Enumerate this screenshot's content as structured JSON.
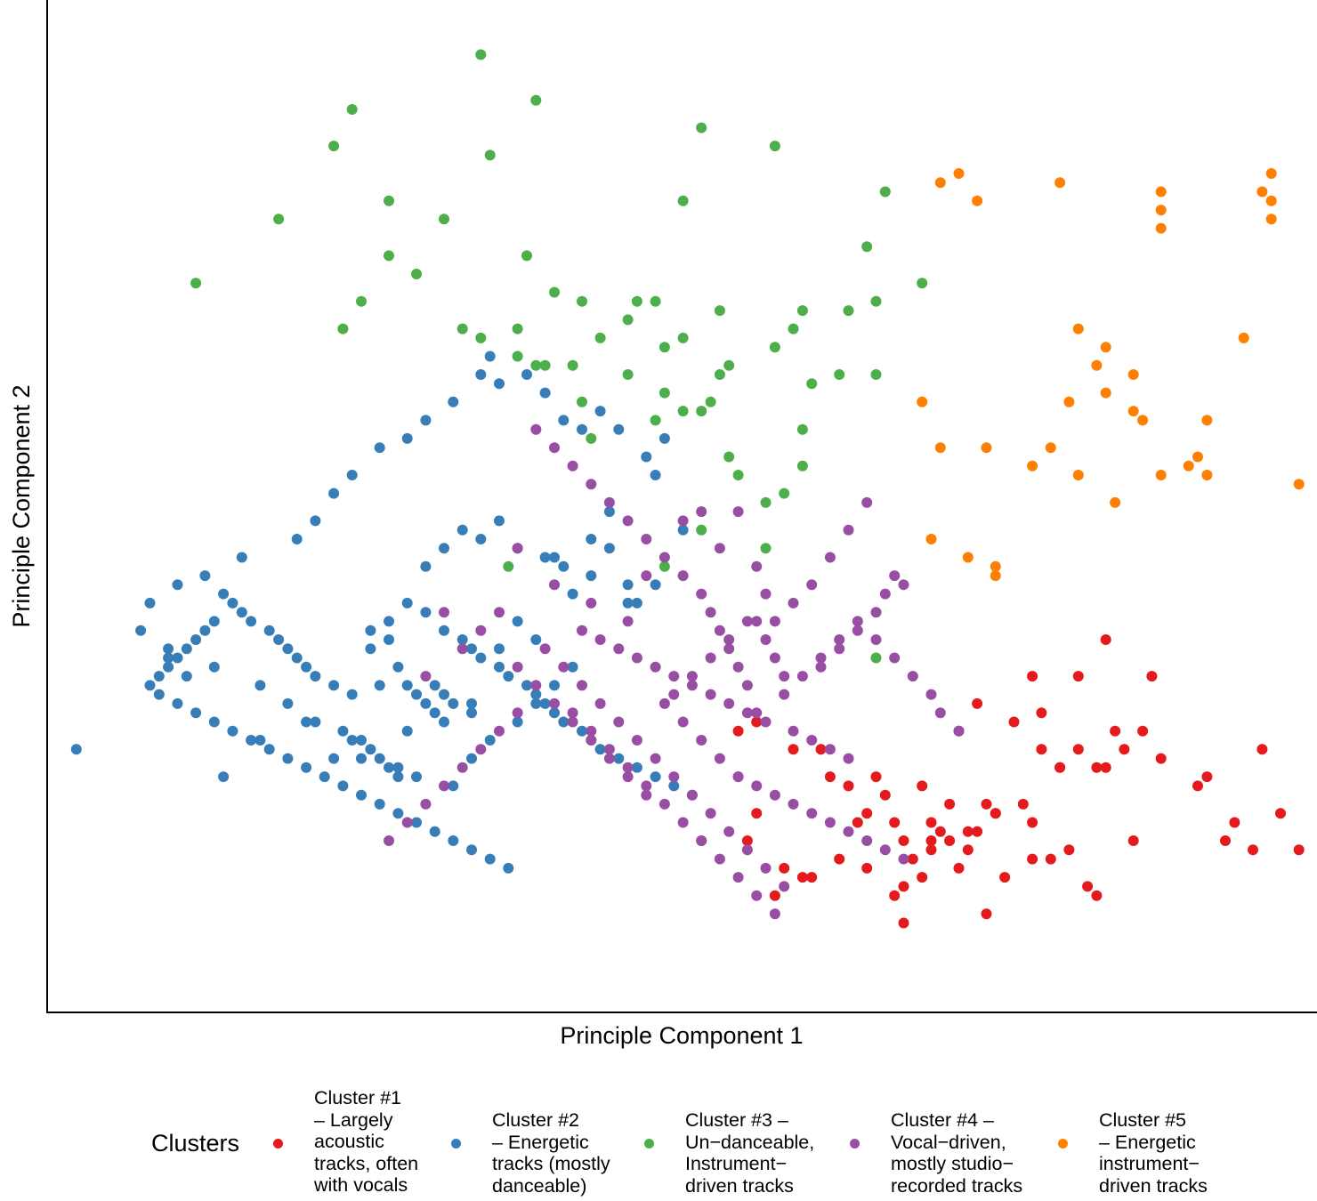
{
  "chart_data": {
    "type": "scatter",
    "xlabel": "Principle Component 1",
    "ylabel": "Principle Component 2",
    "xlim": [
      -10.5,
      126
    ],
    "ylim": [
      -6,
      103
    ],
    "ticks": false,
    "grid": false,
    "legend": {
      "title": "Clusters",
      "position": "bottom"
    },
    "series": [
      {
        "name": "Cluster #1\n– Largely\nacoustic\ntracks, often\nwith vocals",
        "color": "#E41A1C",
        "x": [
          77,
          83,
          85,
          84,
          91,
          92,
          88,
          94,
          90,
          97,
          96,
          101,
          108,
          109,
          114,
          121,
          117,
          120,
          125,
          123,
          64,
          66,
          70,
          73,
          74,
          76,
          79,
          80,
          78,
          81,
          82,
          85,
          87,
          85,
          86,
          90,
          89,
          93,
          95,
          98,
          100,
          103,
          102,
          107,
          106,
          110,
          115,
          118,
          60,
          68,
          72,
          75,
          71,
          69,
          66,
          65,
          81,
          88,
          89,
          92,
          96,
          96,
          99,
          104,
          101,
          105,
          104,
          97,
          99,
          103,
          78,
          82,
          84,
          82,
          87,
          91
        ],
        "y": [
          14,
          10,
          12,
          18,
          16,
          15,
          24,
          25,
          27,
          26,
          30,
          22,
          24,
          30,
          18,
          22,
          12,
          11,
          11,
          15,
          24,
          25,
          22,
          22,
          19,
          18,
          19,
          17,
          15,
          14,
          12,
          14,
          16,
          11,
          13,
          13,
          11,
          8,
          16,
          10,
          11,
          6,
          7,
          12,
          22,
          21,
          19,
          14,
          12,
          6,
          8,
          10,
          8,
          9,
          15,
          12,
          6,
          9,
          13,
          15,
          10,
          14,
          20,
          34,
          30,
          24,
          20,
          22,
          20,
          20,
          9,
          7,
          8,
          3,
          12,
          4
        ]
      },
      {
        "name": "Cluster #2\n– Energetic\ntracks (mostly\ndanceable)",
        "color": "#377EB8",
        "x": [
          -8,
          2,
          4,
          8,
          12,
          17,
          20,
          25,
          28,
          32,
          35,
          38,
          40,
          42,
          46,
          44,
          48,
          50,
          52,
          55,
          55,
          37,
          36,
          33,
          30,
          28,
          25,
          22,
          20,
          18,
          16,
          10,
          6,
          3,
          0,
          -1,
          2,
          7,
          12,
          15,
          18,
          22,
          23,
          27,
          29,
          33,
          35,
          37,
          40,
          42,
          44,
          46,
          30,
          32,
          34,
          36,
          38,
          40,
          43,
          45,
          48,
          50,
          52,
          53,
          38,
          41,
          43,
          45,
          47,
          49,
          51,
          54,
          56,
          58,
          31,
          33,
          35,
          24,
          26,
          28,
          30,
          32,
          34,
          35,
          36,
          38,
          39,
          41,
          42,
          43,
          44,
          45,
          47,
          48,
          49,
          51,
          53,
          55,
          57,
          59,
          24,
          26,
          27,
          28,
          29,
          30,
          31,
          32,
          21,
          23,
          24,
          25,
          26,
          27,
          22,
          20,
          18,
          17,
          16,
          15,
          14,
          13,
          11,
          10,
          9,
          8,
          7,
          6,
          5,
          4,
          3,
          2,
          1,
          0,
          1,
          3,
          5,
          7,
          9,
          11,
          13,
          15,
          17,
          19,
          21,
          23,
          25,
          27,
          29,
          31,
          33,
          35,
          37,
          39
        ],
        "y": [
          22,
          32,
          30,
          19,
          23,
          25,
          21,
          29,
          24,
          28,
          27,
          33,
          36,
          34,
          39,
          43,
          41,
          48,
          38,
          40,
          52,
          65,
          63,
          60,
          58,
          56,
          55,
          52,
          50,
          47,
          45,
          43,
          41,
          40,
          38,
          35,
          33,
          31,
          29,
          27,
          25,
          23,
          21,
          20,
          19,
          18,
          21,
          23,
          25,
          27,
          29,
          31,
          42,
          44,
          46,
          45,
          47,
          44,
          43,
          42,
          45,
          44,
          40,
          38,
          62,
          63,
          61,
          58,
          57,
          59,
          57,
          54,
          56,
          46,
          29,
          27,
          26,
          35,
          36,
          38,
          37,
          35,
          34,
          33,
          32,
          31,
          30,
          29,
          28,
          27,
          26,
          25,
          24,
          23,
          22,
          21,
          20,
          19,
          18,
          17,
          33,
          34,
          31,
          29,
          28,
          27,
          26,
          25,
          24,
          23,
          22,
          21,
          20,
          19,
          28,
          29,
          30,
          31,
          32,
          33,
          34,
          35,
          36,
          37,
          38,
          39,
          36,
          35,
          34,
          33,
          32,
          31,
          30,
          29,
          28,
          27,
          26,
          25,
          24,
          23,
          22,
          21,
          20,
          19,
          18,
          17,
          16,
          15,
          14,
          13,
          12,
          11,
          10,
          9
        ]
      },
      {
        "name": "Cluster #3 –\nUn−danceable,\nInstrument−\ndriven tracks",
        "color": "#4DAF4A",
        "x": [
          36,
          42,
          22,
          20,
          14,
          26,
          5,
          32,
          37,
          60,
          80,
          68,
          78,
          41,
          58,
          29,
          44,
          55,
          52,
          70,
          58,
          49,
          62,
          76,
          84,
          47,
          53,
          56,
          36,
          40,
          26,
          23,
          21,
          42,
          34,
          46,
          43,
          52,
          47,
          55,
          56,
          61,
          63,
          62,
          68,
          71,
          72,
          60,
          71,
          71,
          69,
          63,
          64,
          67,
          67,
          79,
          79,
          58,
          48,
          60,
          56,
          40,
          39,
          79,
          75
        ],
        "y": [
          98,
          93,
          92,
          88,
          80,
          82,
          73,
          80,
          87,
          90,
          83,
          88,
          77,
          76,
          82,
          74,
          72,
          71,
          69,
          68,
          67,
          67,
          70,
          70,
          73,
          71,
          71,
          66,
          67,
          68,
          76,
          71,
          68,
          64,
          68,
          64,
          64,
          63,
          60,
          58,
          61,
          60,
          64,
          63,
          66,
          70,
          62,
          59,
          57,
          53,
          50,
          54,
          52,
          49,
          44,
          63,
          71,
          59,
          56,
          46,
          42,
          65,
          42,
          32,
          63
        ]
      },
      {
        "name": "Cluster #4 –\nVocal−driven,\nmostly studio−\nrecorded tracks",
        "color": "#984EA3",
        "x": [
          32,
          40,
          44,
          48,
          52,
          54,
          58,
          60,
          62,
          64,
          66,
          67,
          68,
          70,
          72,
          74,
          76,
          78,
          73,
          75,
          77,
          79,
          80,
          81,
          82,
          57,
          59,
          61,
          63,
          65,
          66,
          69,
          71,
          73,
          75,
          77,
          79,
          81,
          83,
          85,
          86,
          88,
          30,
          34,
          36,
          38,
          40,
          42,
          44,
          46,
          48,
          50,
          52,
          54,
          56,
          58,
          60,
          62,
          64,
          43,
          45,
          47,
          49,
          51,
          53,
          55,
          57,
          59,
          61,
          63,
          65,
          67,
          69,
          46,
          48,
          50,
          52,
          54,
          56,
          58,
          60,
          62,
          64,
          66,
          68,
          47,
          49,
          51,
          53,
          55,
          57,
          59,
          61,
          63,
          65,
          67,
          70,
          72,
          74,
          76,
          64,
          66,
          68,
          70,
          72,
          74,
          76,
          78,
          80,
          82,
          66,
          67,
          68,
          69,
          65,
          64,
          63,
          62,
          61,
          60,
          58,
          56,
          54,
          52,
          50,
          48,
          46,
          44,
          42,
          40,
          38,
          36,
          34,
          32,
          30,
          28,
          26
        ],
        "y": [
          37,
          44,
          40,
          38,
          36,
          41,
          47,
          48,
          44,
          48,
          42,
          39,
          36,
          38,
          40,
          43,
          46,
          49,
          31,
          33,
          35,
          37,
          39,
          41,
          40,
          28,
          30,
          32,
          34,
          36,
          26,
          28,
          30,
          32,
          34,
          36,
          34,
          32,
          30,
          28,
          26,
          24,
          30,
          33,
          35,
          37,
          31,
          29,
          27,
          25,
          23,
          21,
          19,
          17,
          27,
          25,
          23,
          21,
          19,
          33,
          31,
          29,
          27,
          25,
          23,
          21,
          19,
          17,
          15,
          13,
          11,
          9,
          7,
          26,
          24,
          22,
          20,
          18,
          16,
          14,
          12,
          10,
          8,
          6,
          4,
          35,
          34,
          33,
          32,
          31,
          30,
          29,
          28,
          27,
          26,
          25,
          24,
          23,
          22,
          21,
          19,
          18,
          17,
          16,
          15,
          14,
          13,
          12,
          11,
          10,
          36,
          34,
          32,
          30,
          29,
          31,
          33,
          35,
          37,
          39,
          41,
          43,
          45,
          47,
          49,
          51,
          53,
          55,
          57,
          26,
          24,
          22,
          20,
          18,
          16,
          14,
          12
        ]
      },
      {
        "name": "Cluster #5\n– Energetic\ninstrument−\ndriven tracks",
        "color": "#FF7F00",
        "x": [
          86,
          88,
          90,
          99,
          110,
          110,
          110,
          121,
          122,
          122,
          122,
          101,
          104,
          103,
          107,
          100,
          98,
          104,
          108,
          115,
          110,
          113,
          115,
          114,
          125,
          86,
          91,
          96,
          101,
          105,
          85,
          89,
          92,
          92,
          84,
          107,
          119
        ],
        "y": [
          84,
          85,
          82,
          84,
          79,
          81,
          83,
          83,
          85,
          80,
          82,
          68,
          66,
          64,
          63,
          60,
          55,
          61,
          58,
          58,
          52,
          53,
          52,
          54,
          51,
          55,
          55,
          53,
          52,
          49,
          45,
          43,
          41,
          42,
          60,
          59,
          67
        ]
      }
    ]
  }
}
